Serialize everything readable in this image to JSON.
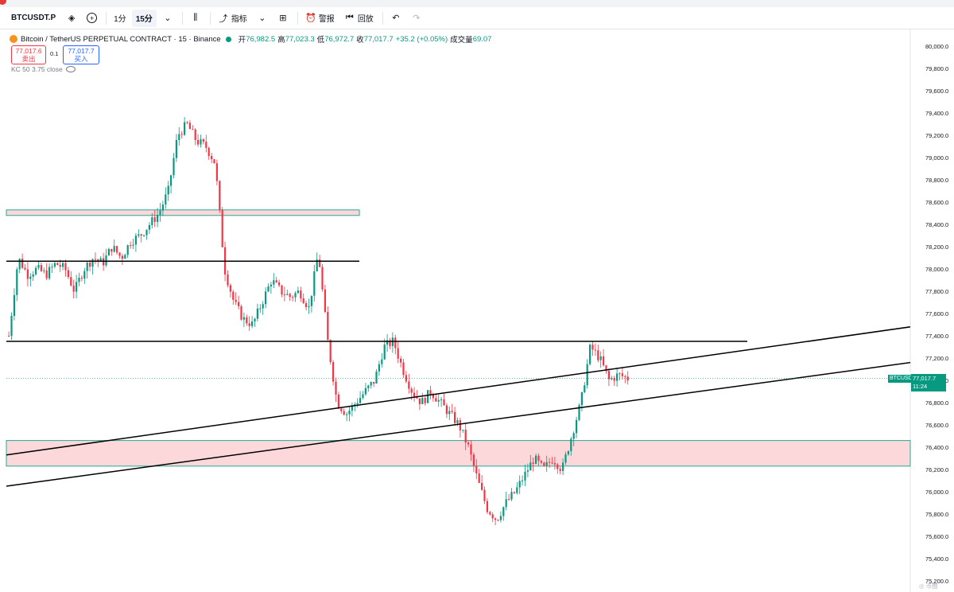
{
  "toolbar": {
    "symbol": "BTCUSDT.P",
    "interval_1": "1分",
    "interval_2": "15分",
    "indicators": "指标",
    "alert": "警报",
    "replay": "回放"
  },
  "legend": {
    "title": "Bitcoin / TetherUS PERPETUAL CONTRACT · 15 · Binance",
    "open_label": "开",
    "open": "76,982.5",
    "high_label": "高",
    "high": "77,023.3",
    "low_label": "低",
    "low": "76,972.7",
    "close_label": "收",
    "close": "77,017.7",
    "change": "+35.2 (+0.05%)",
    "volume_label": "成交量",
    "volume": "69.07"
  },
  "price_boxes": {
    "sell_price": "77,017.6",
    "sell_label": "卖出",
    "spread": "0.1",
    "buy_price": "77,017.7",
    "buy_label": "买入"
  },
  "indicator_label": "KC 50 3.75 close",
  "last_price": {
    "symbol": "BTCUSDT.P",
    "price": "77,017.7",
    "countdown": "11:24",
    "color": "#089981"
  },
  "watermark": "◎ 币圈",
  "colors": {
    "up": "#089981",
    "down": "#f23645",
    "zone_fill": "#fcd8db",
    "zone_border": "#22ab94"
  },
  "chart_data": {
    "type": "candlestick",
    "title": "Bitcoin / TetherUS PERPETUAL CONTRACT · 15 · Binance",
    "ylim": [
      75200,
      80100
    ],
    "yticks": [
      75200,
      75400,
      75600,
      75800,
      76000,
      76200,
      76400,
      76600,
      76800,
      77000,
      77200,
      77400,
      77600,
      77800,
      78000,
      78200,
      78400,
      78600,
      78800,
      79000,
      79200,
      79400,
      79600,
      79800,
      80000
    ],
    "ytick_labels": [
      "75,200.0",
      "75,400.0",
      "75,600.0",
      "75,800.0",
      "76,000.0",
      "76,200.0",
      "76,400.0",
      "76,600.0",
      "76,800.0",
      "77,000.0",
      "77,200.0",
      "77,400.0",
      "77,600.0",
      "77,800.0",
      "78,000.0",
      "78,200.0",
      "78,400.0",
      "78,600.0",
      "78,800.0",
      "79,000.0",
      "79,200.0",
      "79,400.0",
      "79,600.0",
      "79,800.0",
      "80,000.0"
    ],
    "close_path": [
      77400,
      78100,
      77950,
      78000,
      77950,
      78050,
      78000,
      77800,
      78000,
      78100,
      78050,
      78200,
      78100,
      78250,
      78300,
      78400,
      78500,
      78700,
      79200,
      79300,
      79150,
      79100,
      78950,
      78000,
      77700,
      77550,
      77500,
      77700,
      77900,
      77800,
      77750,
      77800,
      77650,
      78150,
      77350,
      76800,
      76700,
      76800,
      76900,
      77000,
      77300,
      77350,
      77100,
      76900,
      76800,
      76900,
      76800,
      76700,
      76600,
      76400,
      76100,
      75850,
      75750,
      75900,
      76000,
      76150,
      76300,
      76200,
      76300,
      76200,
      76500,
      76800,
      77300,
      77200,
      77000,
      77050,
      77017.7
    ],
    "horizontal_levels": [
      78070,
      77350
    ],
    "zones": [
      {
        "y_low": 78480,
        "y_high": 78530,
        "x_end_frac": 0.4
      },
      {
        "y_low": 76230,
        "y_high": 76460,
        "x_end_frac": 1.0
      }
    ],
    "trendlines": [
      {
        "y_start": 76330,
        "y_end": 77480
      },
      {
        "y_start": 76050,
        "y_end": 77160
      }
    ],
    "last_price": 77017.7
  }
}
